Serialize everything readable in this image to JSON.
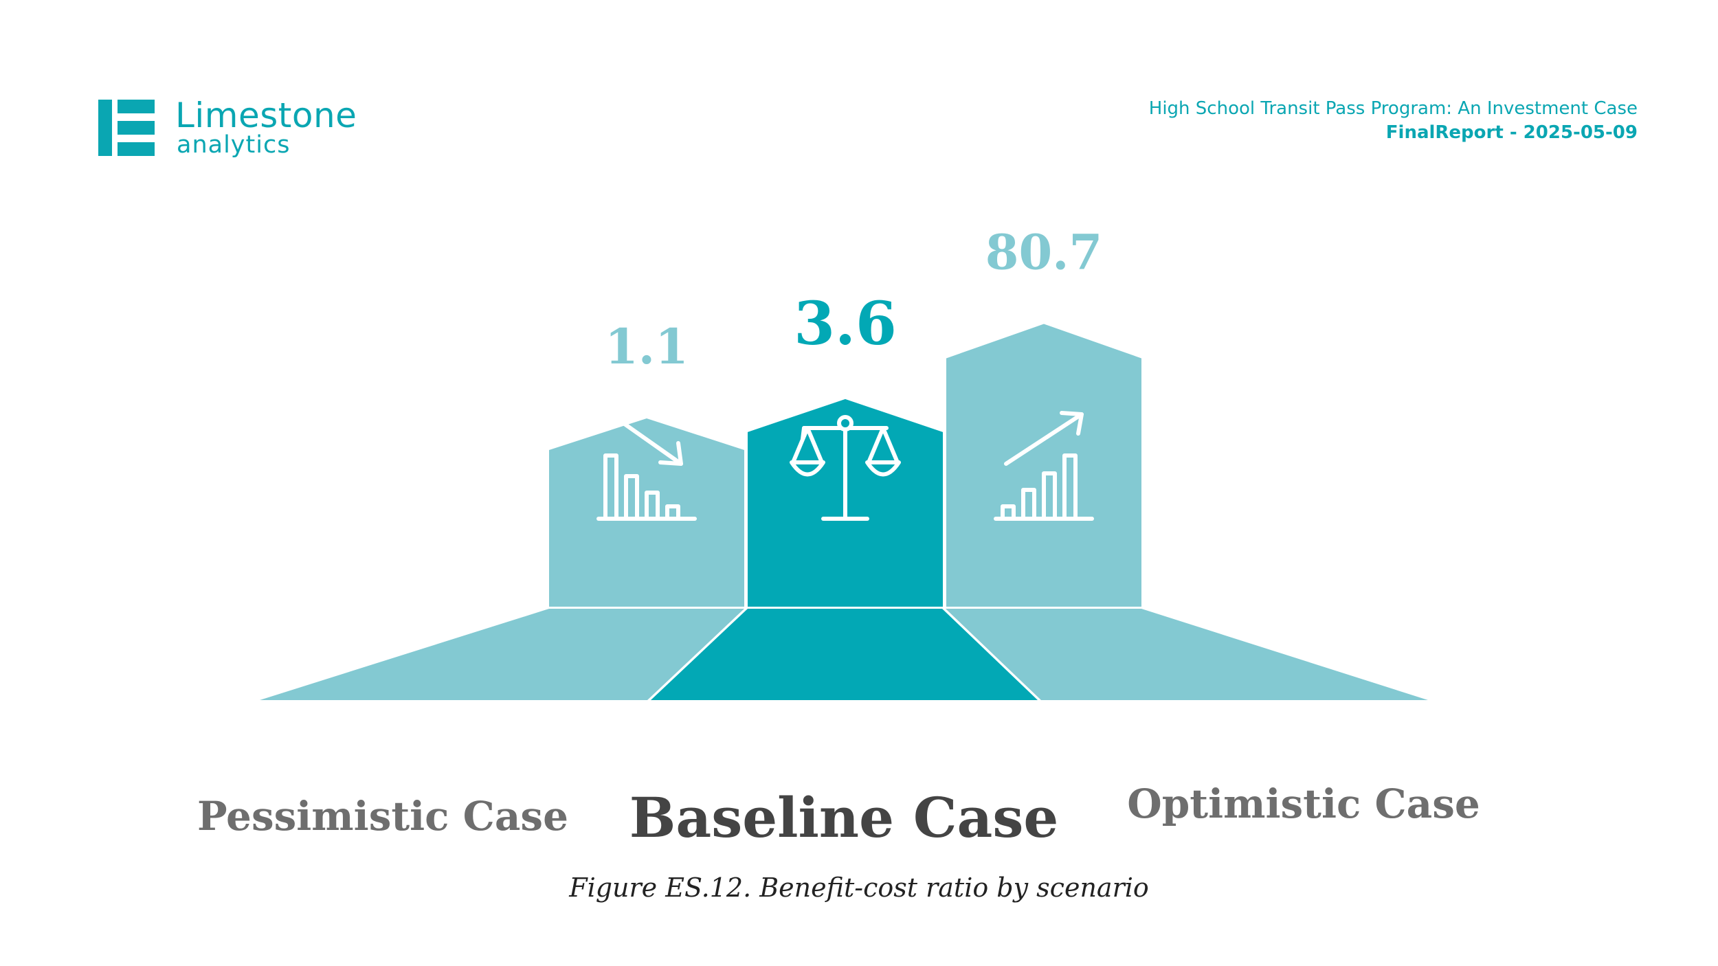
{
  "brand": {
    "name": "Limestone",
    "sub": "analytics"
  },
  "report": {
    "title": "High School Transit Pass Program: An Investment Case",
    "subtitle": "FinalReport - 2025-05-09"
  },
  "caption": "Figure ES.12. Benefit-cost ratio by scenario",
  "colors": {
    "light": "#83c9d2",
    "dark": "#02a8b5",
    "label_dark": "#444444",
    "label_light": "#6e6e6e"
  },
  "chart_data": {
    "type": "bar",
    "title": "",
    "xlabel": "",
    "ylabel": "",
    "categories": [
      "Pessimistic Case",
      "Baseline Case",
      "Optimistic Case"
    ],
    "values": [
      1.1,
      3.6,
      80.7
    ],
    "value_labels": [
      "1.1",
      "3.6",
      "80.7"
    ],
    "icons": [
      "chart-down-icon",
      "balance-scale-icon",
      "chart-up-icon"
    ],
    "highlight": "Baseline Case",
    "grid": false,
    "legend": "none"
  }
}
